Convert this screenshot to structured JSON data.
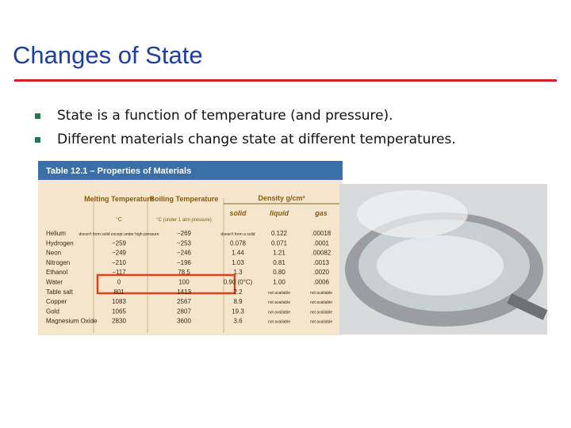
{
  "title": "Changes of State",
  "bullets": [
    "State is a function of temperature (and pressure).",
    "Different materials change state at different temperatures."
  ],
  "table": {
    "caption": "Table 12.1 – Properties of Materials",
    "headers": {
      "melting": "Melting Temperature",
      "melting_unit": "°C",
      "boiling": "Boiling Temperature",
      "boiling_unit": "°C (under 1 atm pressure)",
      "density": "Density g/cm³",
      "solid": "solid",
      "liquid": "liquid",
      "gas": "gas"
    },
    "rows": [
      [
        "Helium",
        "doesn't form solid except under high pressure",
        "−269",
        "doesn't form a solid",
        "0.122",
        ".00018"
      ],
      [
        "Hydrogen",
        "−259",
        "−253",
        "0.078",
        "0.071",
        ".0001"
      ],
      [
        "Neon",
        "−249",
        "−246",
        "1.44",
        "1.21",
        ".00082"
      ],
      [
        "Nitrogen",
        "−210",
        "−196",
        "1.03",
        "0.81",
        ".0013"
      ],
      [
        "Ethanol",
        "−117",
        "78.5",
        "1.3",
        "0.80",
        ".0020"
      ],
      [
        "Water",
        "0",
        "100",
        "0.90 (0°C)",
        "1.00",
        ".0006"
      ],
      [
        "Table salt",
        "801",
        "1413",
        "2.2",
        "not available",
        "not available"
      ],
      [
        "Copper",
        "1083",
        "2567",
        "8.9",
        "not available",
        "not available"
      ],
      [
        "Gold",
        "1065",
        "2807",
        "19.3",
        "not available",
        "not available"
      ],
      [
        "Magnesium Oxide",
        "2830",
        "3600",
        "3.6",
        "not available",
        "not available"
      ]
    ]
  }
}
